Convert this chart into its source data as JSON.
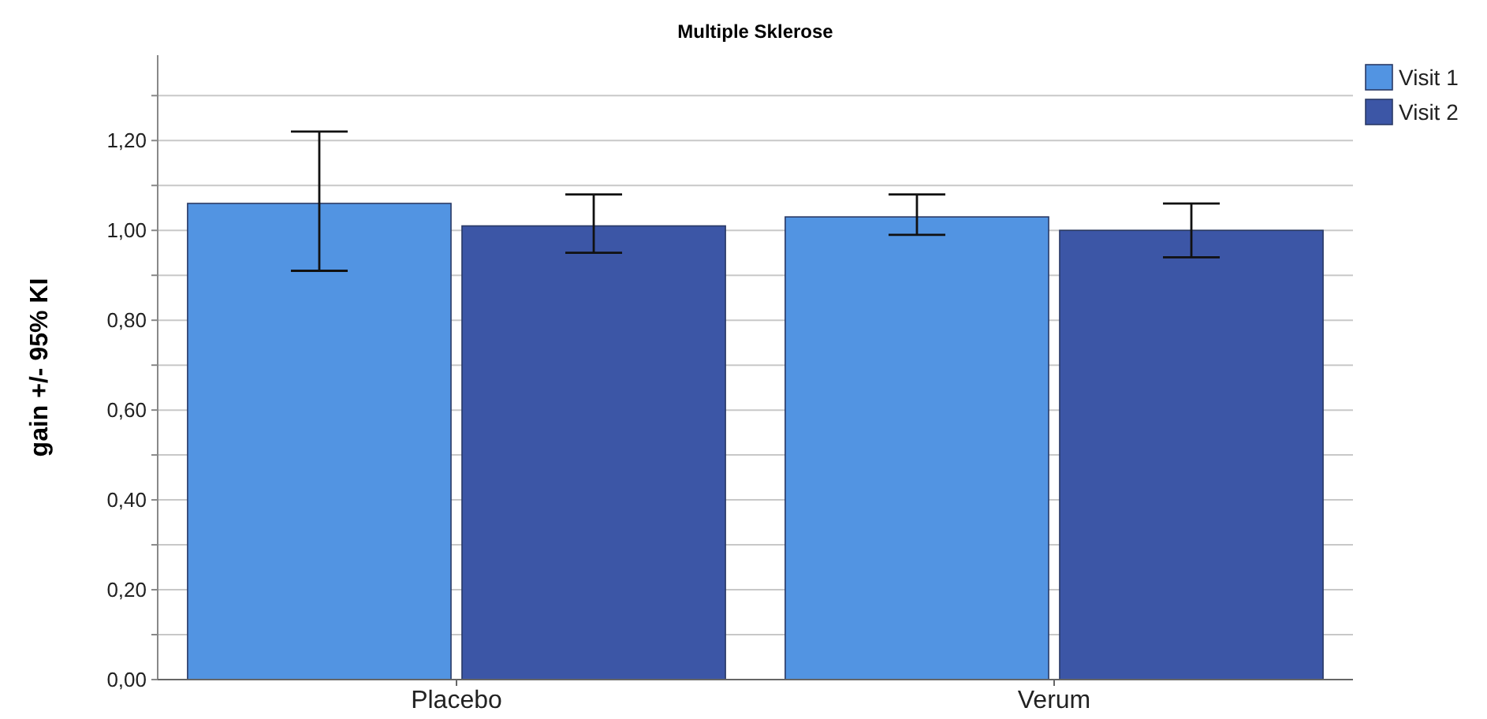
{
  "chart_data": {
    "type": "bar",
    "title": "Multiple Sklerose",
    "ylabel": "gain +/- 95% KI",
    "categories": [
      "Placebo",
      "Verum"
    ],
    "series": [
      {
        "name": "Visit 1",
        "color": "#5294e2",
        "values": [
          1.06,
          1.03
        ],
        "errors": [
          [
            0.91,
            1.22
          ],
          [
            0.99,
            1.08
          ]
        ]
      },
      {
        "name": "Visit 2",
        "color": "#3c56a6",
        "values": [
          1.01,
          1.0
        ],
        "errors": [
          [
            0.95,
            1.08
          ],
          [
            0.94,
            1.06
          ]
        ]
      }
    ],
    "ylim": [
      0,
      1.39
    ],
    "yticks": [
      {
        "value": 0,
        "label": "0,00"
      },
      {
        "value": 0.1,
        "label": null
      },
      {
        "value": 0.2,
        "label": "0,20"
      },
      {
        "value": 0.3,
        "label": null
      },
      {
        "value": 0.4,
        "label": "0,40"
      },
      {
        "value": 0.5,
        "label": null
      },
      {
        "value": 0.6,
        "label": "0,60"
      },
      {
        "value": 0.7,
        "label": null
      },
      {
        "value": 0.8,
        "label": "0,80"
      },
      {
        "value": 0.9,
        "label": null
      },
      {
        "value": 1.0,
        "label": "1,00"
      },
      {
        "value": 1.1,
        "label": null
      },
      {
        "value": 1.2,
        "label": "1,20"
      },
      {
        "value": 1.3,
        "label": null
      }
    ],
    "grid": "y",
    "legend": "top right"
  }
}
